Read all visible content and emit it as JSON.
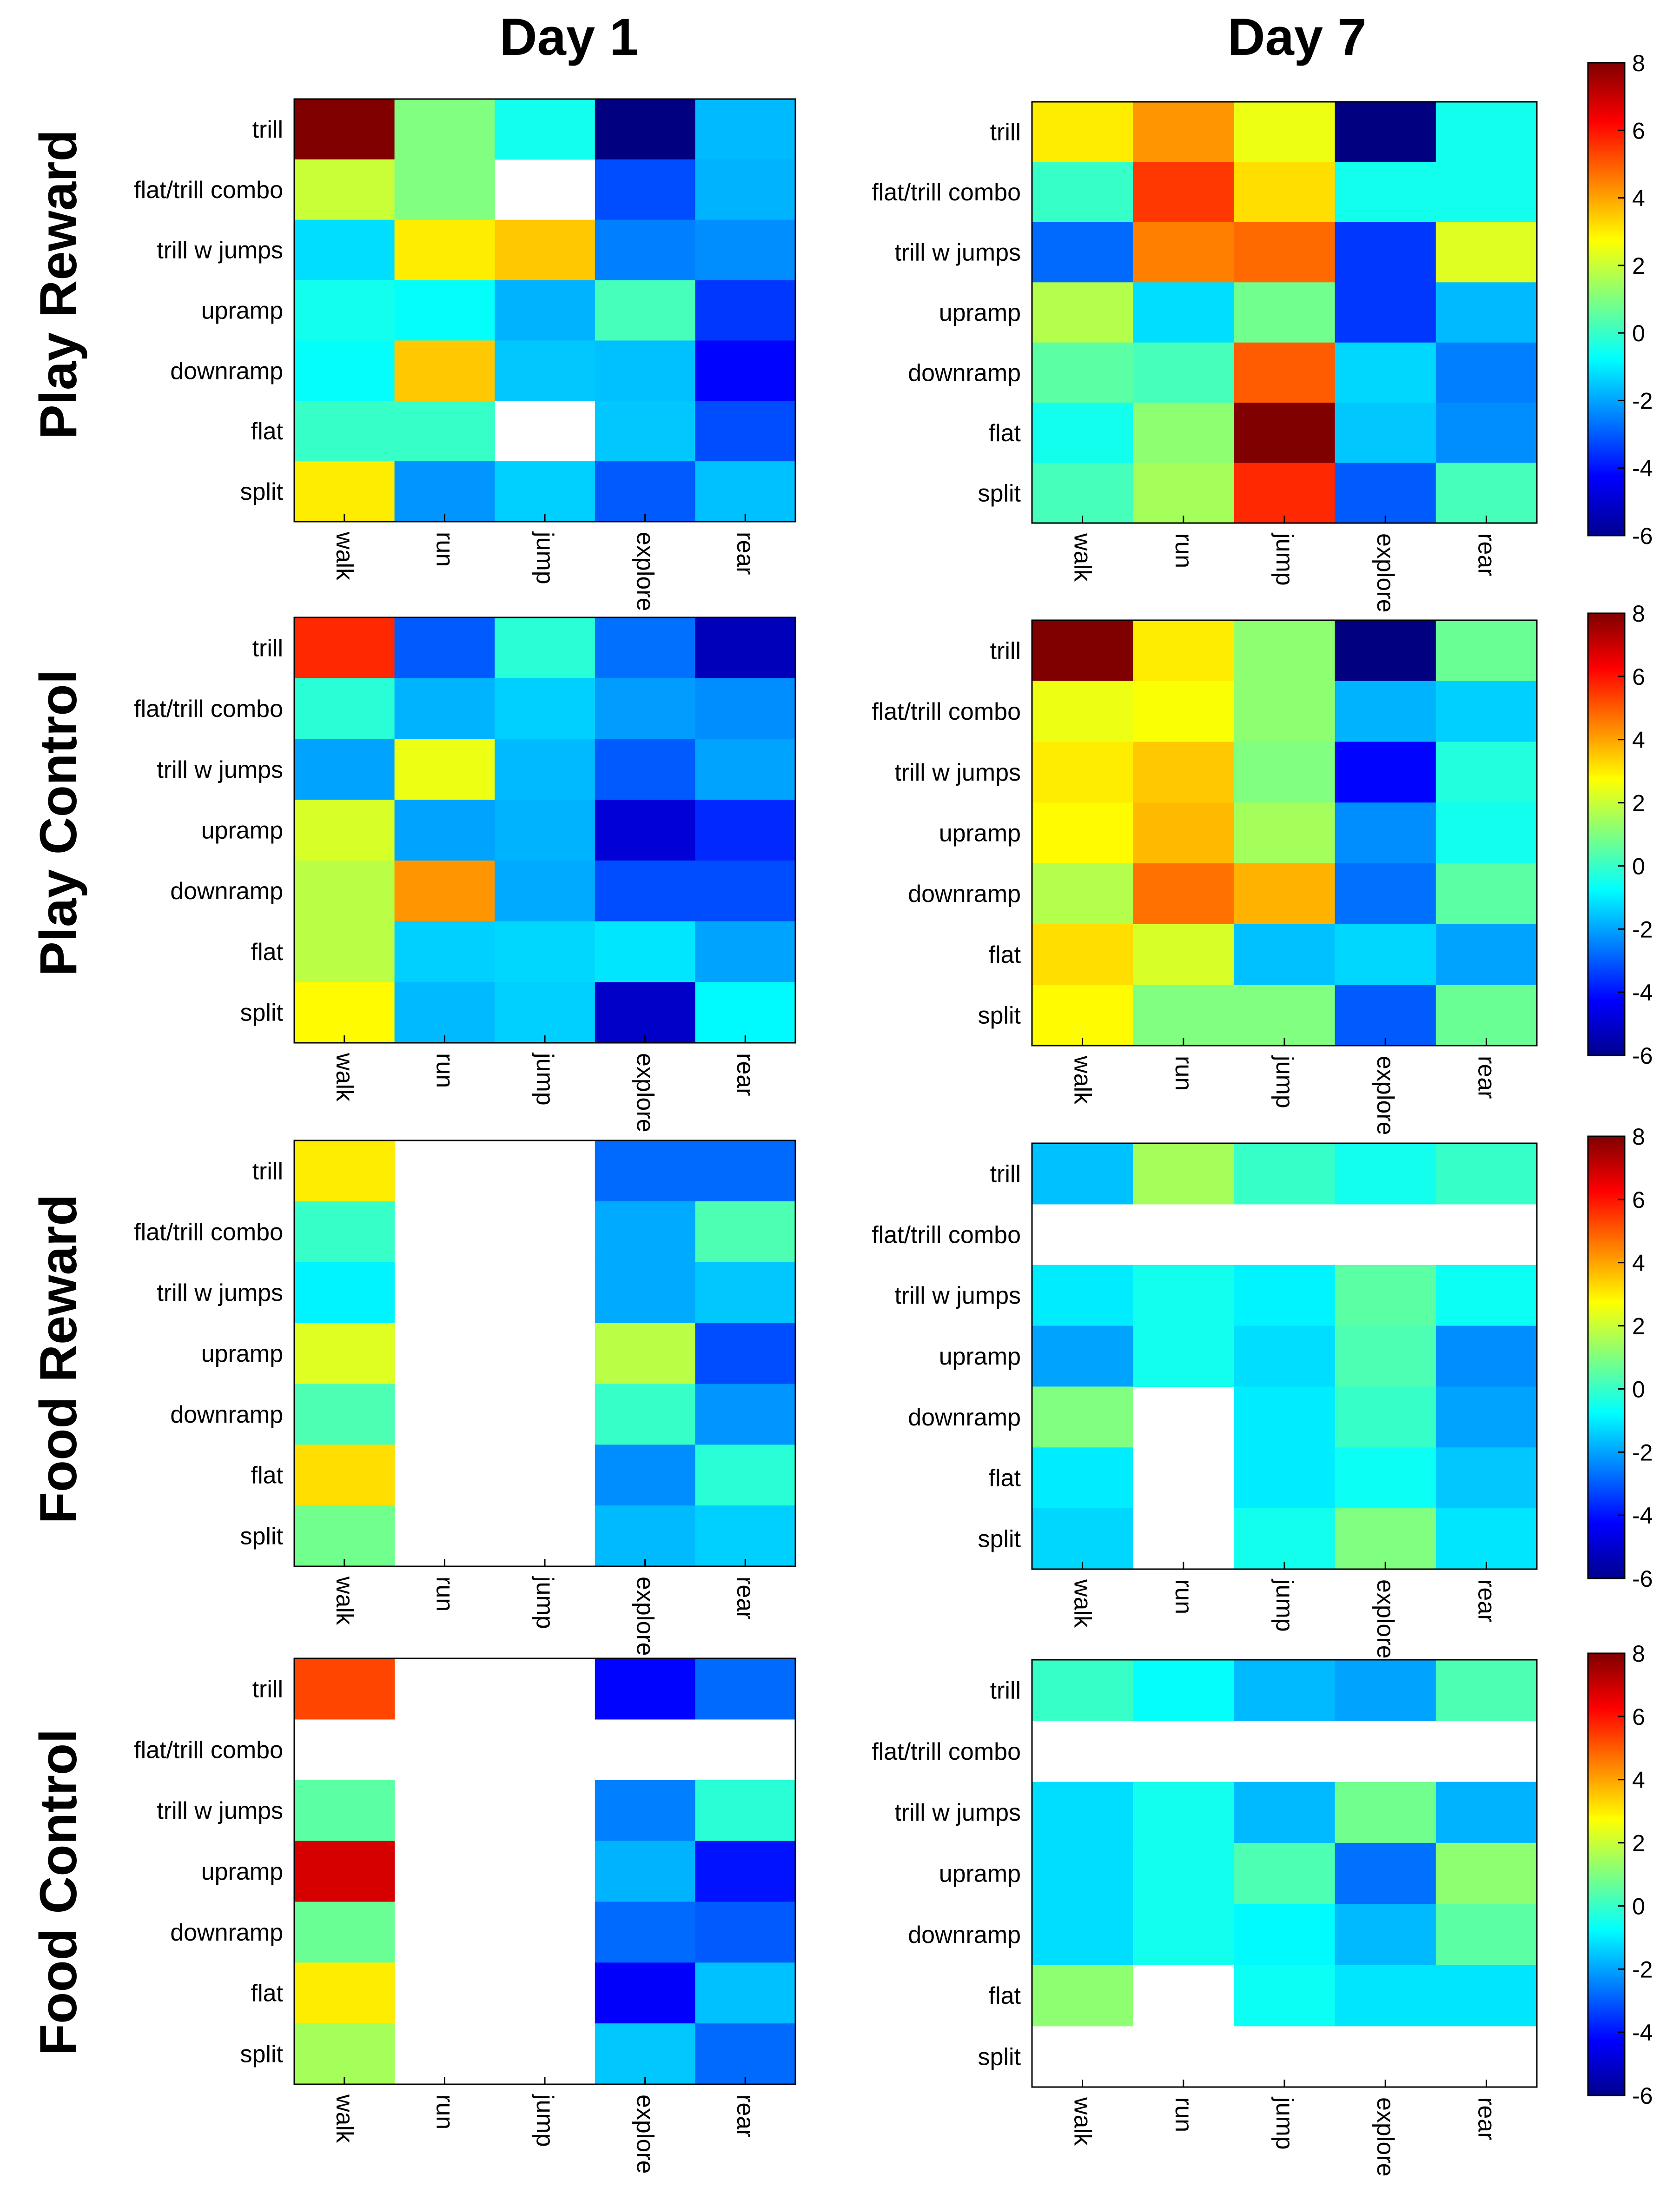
{
  "figure": {
    "col_titles": [
      "Day 1",
      "Day 7"
    ],
    "row_titles": [
      "Play Reward",
      "Play Control",
      "Food Reward",
      "Food Control"
    ]
  },
  "chart_data": {
    "type": "heatmap",
    "rows": [
      "trill",
      "flat/trill combo",
      "trill w jumps",
      "upramp",
      "downramp",
      "flat",
      "split"
    ],
    "cols": [
      "walk",
      "run",
      "jump",
      "explore",
      "rear"
    ],
    "colorbar": {
      "min": -6,
      "max": 8,
      "ticks": [
        "8",
        "6",
        "4",
        "2",
        "0",
        "-2",
        "-4",
        "-6"
      ],
      "colormap": "jet"
    },
    "panels": [
      {
        "group": "Play Reward",
        "day": "Day 1",
        "values": [
          [
            8,
            1,
            -0.5,
            -6,
            -1.7
          ],
          [
            2,
            1,
            null,
            -3.2,
            -1.8
          ],
          [
            -1.2,
            3,
            3.5,
            -2.5,
            -2.3
          ],
          [
            -0.5,
            -0.7,
            -1.8,
            0.2,
            -3.5
          ],
          [
            -0.7,
            3.5,
            -1.5,
            -1.6,
            -4.2
          ],
          [
            0,
            0,
            null,
            -1.5,
            -3.2
          ],
          [
            3,
            -2.2,
            -1.4,
            -3,
            -1.6
          ]
        ]
      },
      {
        "group": "Play Reward",
        "day": "Day 7",
        "values": [
          [
            3,
            4.2,
            2.5,
            -6,
            -0.5
          ],
          [
            0,
            5.5,
            3.2,
            -0.5,
            -0.5
          ],
          [
            -2.8,
            4.5,
            4.8,
            -3.5,
            2.3
          ],
          [
            1.7,
            -1.2,
            0.8,
            -3.5,
            -1.7
          ],
          [
            0.5,
            0.2,
            5,
            -1.3,
            -2.5
          ],
          [
            -0.5,
            1.2,
            8,
            -1.5,
            -2.3
          ],
          [
            0.2,
            1.5,
            5.7,
            -3,
            0.2
          ]
        ]
      },
      {
        "group": "Play Control",
        "day": "Day 1",
        "values": [
          [
            5.7,
            -3,
            -0.2,
            -2.7,
            -5.2
          ],
          [
            -0.2,
            -1.8,
            -1.4,
            -2.1,
            -2.3
          ],
          [
            -2,
            2.5,
            -1.7,
            -3,
            -2
          ],
          [
            2.2,
            -2,
            -1.8,
            -4.8,
            -3.7
          ],
          [
            1.8,
            4.2,
            -1.9,
            -3.2,
            -3.2
          ],
          [
            1.8,
            -1.4,
            -1.3,
            -1.1,
            -2
          ],
          [
            2.8,
            -1.7,
            -1.4,
            -5,
            -0.8
          ]
        ]
      },
      {
        "group": "Play Control",
        "day": "Day 7",
        "values": [
          [
            8,
            3,
            1.2,
            -6,
            0.7
          ],
          [
            2.5,
            2.7,
            1.2,
            -1.8,
            -1.4
          ],
          [
            3,
            3.5,
            1,
            -4.2,
            -0.3
          ],
          [
            2.8,
            3.7,
            1.5,
            -2.3,
            -0.5
          ],
          [
            1.7,
            4.7,
            3.8,
            -2.7,
            0.5
          ],
          [
            3.2,
            2.2,
            -1.6,
            -1.3,
            -2
          ],
          [
            2.8,
            1,
            1,
            -3,
            0.7
          ]
        ]
      },
      {
        "group": "Food Reward",
        "day": "Day 1",
        "values": [
          [
            3,
            null,
            null,
            -2.8,
            -2.8
          ],
          [
            0,
            null,
            null,
            -1.9,
            0.3
          ],
          [
            -0.9,
            null,
            null,
            -1.9,
            -1.5
          ],
          [
            2.3,
            null,
            null,
            1.8,
            -3.2
          ],
          [
            0.3,
            null,
            null,
            0,
            -2.2
          ],
          [
            3.2,
            null,
            null,
            -2.3,
            -0.2
          ],
          [
            0.8,
            null,
            null,
            -1.7,
            -1.4
          ]
        ]
      },
      {
        "group": "Food Reward",
        "day": "Day 7",
        "values": [
          [
            -1.6,
            1.5,
            0,
            -0.5,
            0
          ],
          [
            null,
            null,
            null,
            null,
            null
          ],
          [
            -1,
            -0.5,
            -0.9,
            0.5,
            -0.6
          ],
          [
            -2,
            -0.5,
            -1.2,
            0.3,
            -2.3
          ],
          [
            1,
            null,
            -1,
            0,
            -2
          ],
          [
            -1,
            null,
            -1,
            -0.6,
            -1.5
          ],
          [
            -1.3,
            null,
            -0.5,
            1,
            -1.1
          ]
        ]
      },
      {
        "group": "Food Control",
        "day": "Day 7",
        "values": [
          [
            0,
            -0.7,
            -1.7,
            -2,
            0.3
          ],
          [
            null,
            null,
            null,
            null,
            null
          ],
          [
            -1.2,
            -0.5,
            -1.7,
            0.8,
            -1.8
          ],
          [
            -1.2,
            -0.5,
            0.3,
            -2.7,
            1.2
          ],
          [
            -1.2,
            -0.5,
            -0.8,
            -1.7,
            0.5
          ],
          [
            1.2,
            null,
            -0.6,
            -1.1,
            -1.1
          ],
          [
            null,
            null,
            null,
            null,
            null
          ]
        ]
      },
      {
        "group": "Food Control",
        "day": "Day 1",
        "values": [
          [
            5.3,
            null,
            null,
            -4.2,
            -2.8
          ],
          [
            null,
            null,
            null,
            null,
            null
          ],
          [
            0.5,
            null,
            null,
            -2.5,
            -0.2
          ],
          [
            6.8,
            null,
            null,
            -1.8,
            -4
          ],
          [
            0.7,
            null,
            null,
            -2.8,
            -3
          ],
          [
            3,
            null,
            null,
            -4.3,
            -1.6
          ],
          [
            1.5,
            null,
            null,
            -1.5,
            -2.8
          ]
        ]
      }
    ]
  }
}
